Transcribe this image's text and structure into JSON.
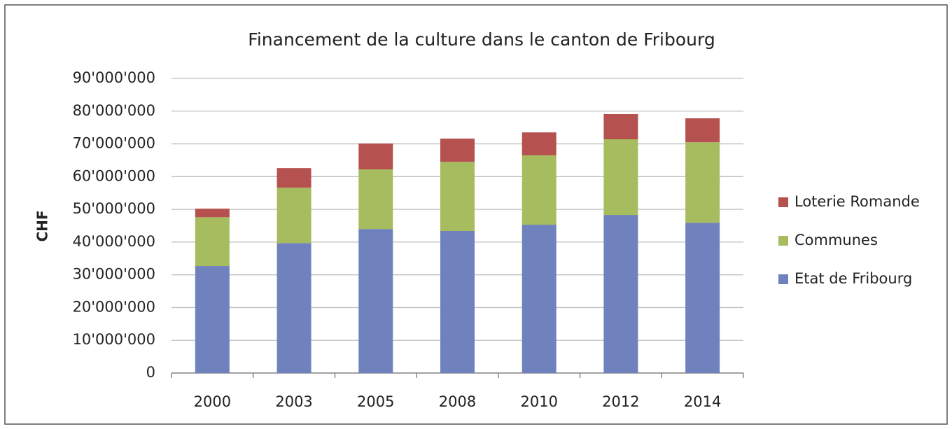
{
  "chart_data": {
    "type": "stacked_bar",
    "title": "Financement de la culture dans le canton de Fribourg",
    "ylabel": "CHF",
    "categories": [
      "2000",
      "2003",
      "2005",
      "2008",
      "2010",
      "2012",
      "2014"
    ],
    "series": [
      {
        "name": "Etat de Fribourg",
        "color": "#6f82bd",
        "values": [
          32700000,
          39700000,
          44000000,
          43400000,
          45300000,
          48300000,
          45900000
        ]
      },
      {
        "name": "Communes",
        "color": "#a6bc5e",
        "values": [
          14900000,
          16900000,
          18200000,
          21100000,
          21200000,
          23100000,
          24600000
        ]
      },
      {
        "name": "Loterie Romande",
        "color": "#b5514f",
        "values": [
          2600000,
          6000000,
          7900000,
          7100000,
          7000000,
          7700000,
          7300000
        ]
      }
    ],
    "ylim": [
      0,
      90000000
    ],
    "yticks": [
      0,
      {
        "value": 10000000,
        "label": "10'000'000"
      },
      {
        "value": 20000000,
        "label": "20'000'000"
      },
      {
        "value": 30000000,
        "label": "30'000'000"
      },
      {
        "value": 40000000,
        "label": "40'000'000"
      },
      {
        "value": 50000000,
        "label": "50'000'000"
      },
      {
        "value": 60000000,
        "label": "60'000'000"
      },
      {
        "value": 70000000,
        "label": "70'000'000"
      },
      {
        "value": 80000000,
        "label": "80'000'000"
      },
      {
        "value": 90000000,
        "label": "90'000'000"
      }
    ],
    "grid": true,
    "legend": "right"
  }
}
